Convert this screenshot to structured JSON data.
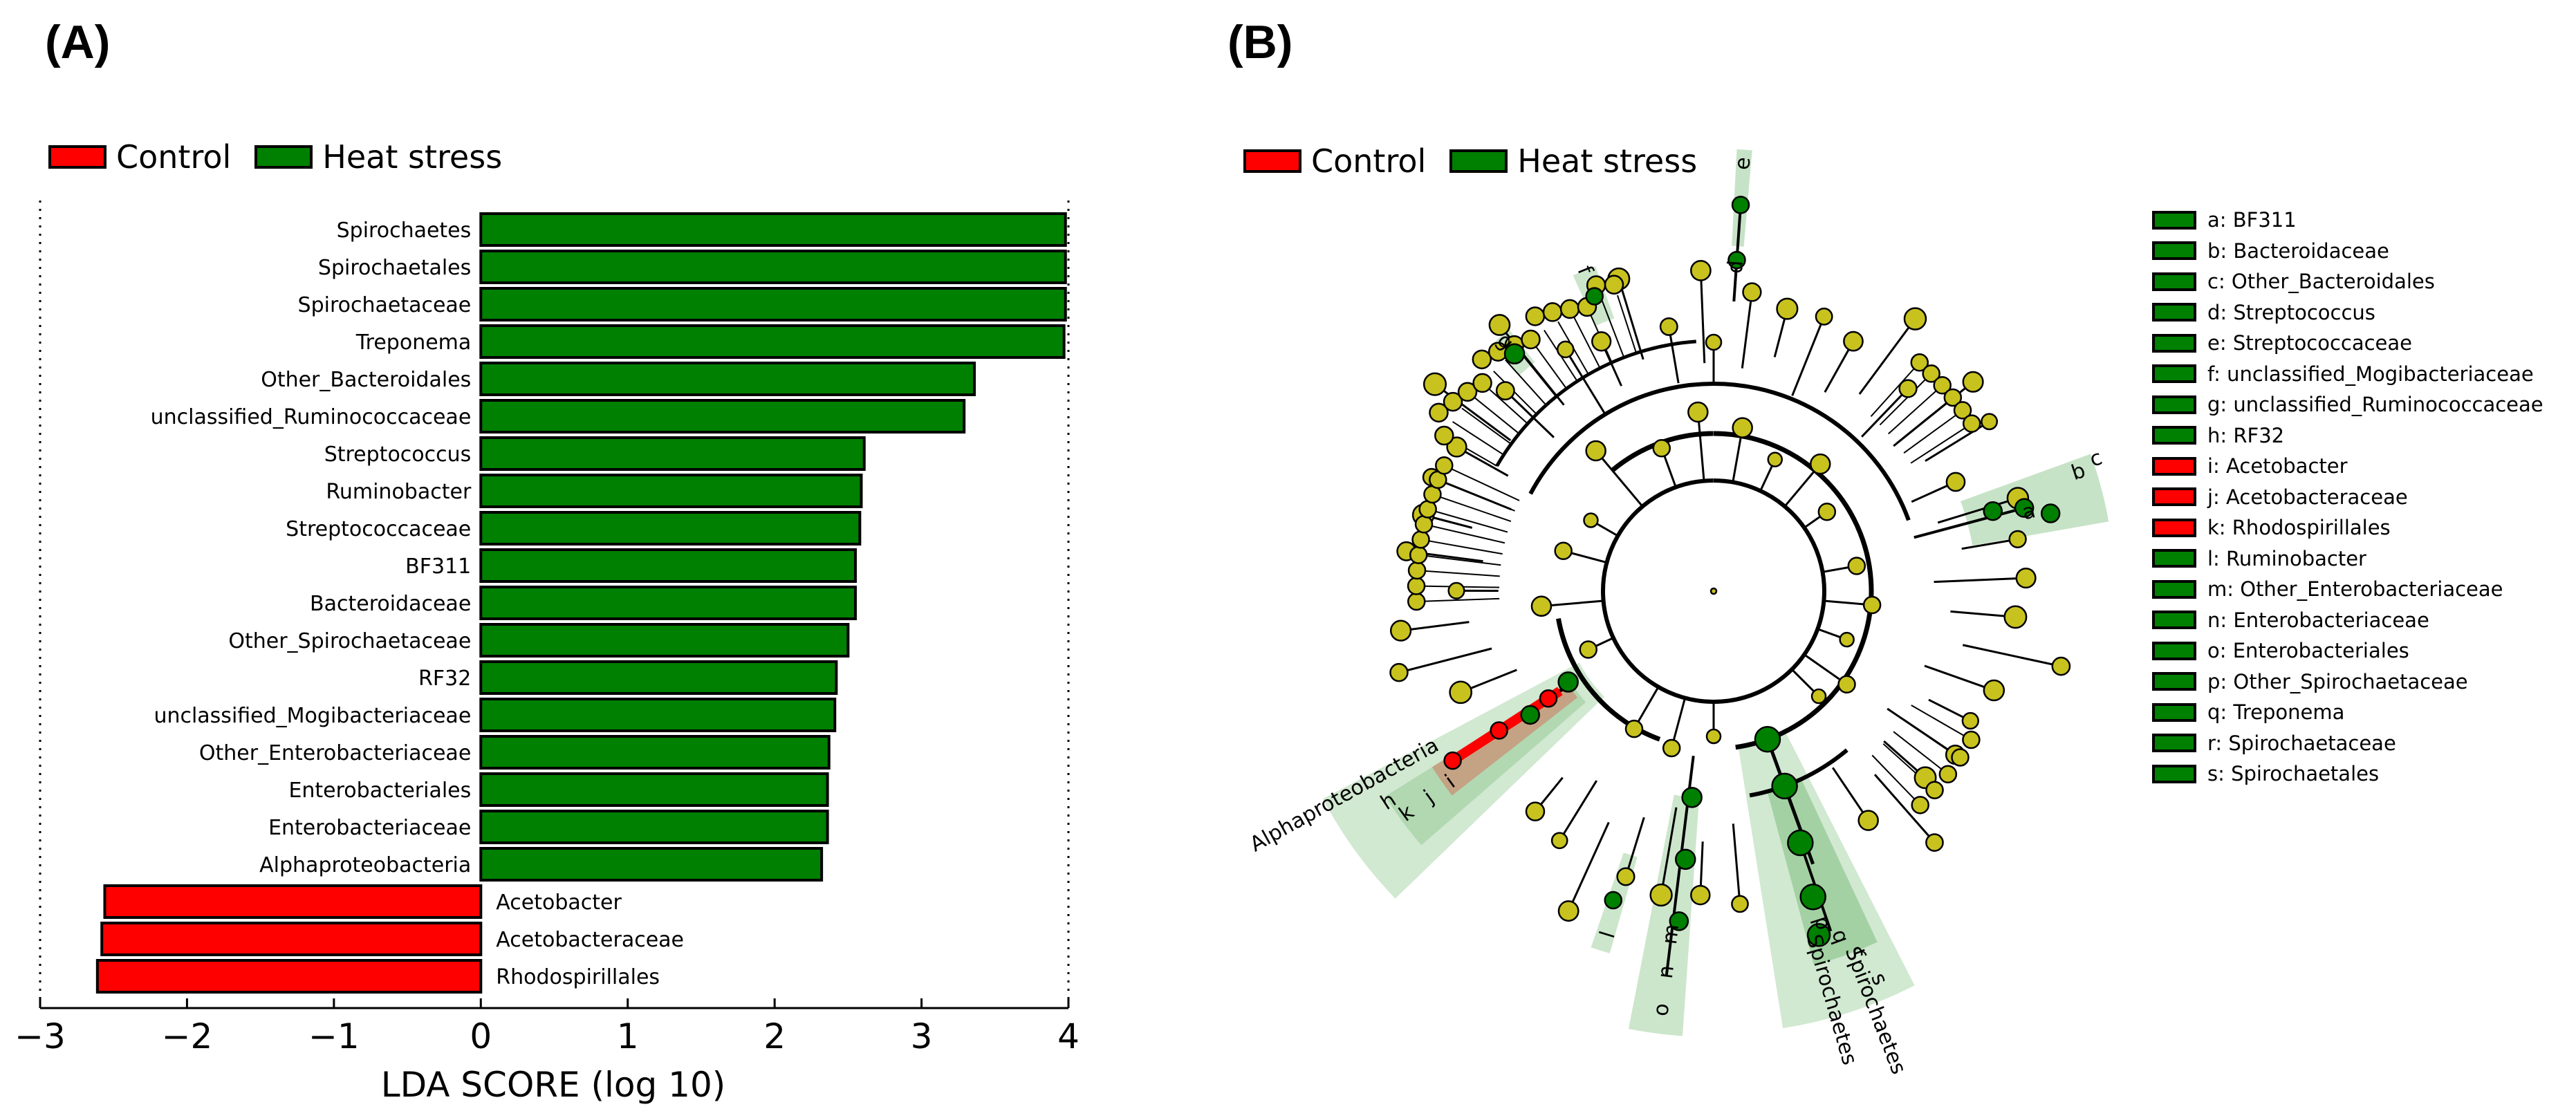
{
  "panel_a": {
    "label": "(A)"
  },
  "panel_b": {
    "label": "(B)"
  },
  "colors": {
    "control": "#ff0000",
    "heat": "#008000",
    "node": "#c8c21e",
    "ring": "#000000"
  },
  "legend": {
    "control": {
      "label": "Control",
      "color": "#ff0000"
    },
    "heat": {
      "label": "Heat stress",
      "color": "#008000"
    }
  },
  "chart_data": {
    "type": "bar",
    "orientation": "horizontal",
    "title": "",
    "xlabel": "LDA SCORE (log 10)",
    "ylabel": "",
    "xlim": [
      -3,
      4
    ],
    "xticks": [
      -3,
      -2,
      -1,
      0,
      1,
      2,
      3,
      4
    ],
    "xtick_labels": [
      "−3",
      "−2",
      "−1",
      "0",
      "1",
      "2",
      "3",
      "4"
    ],
    "series": [
      {
        "name": "Heat stress",
        "color": "#008000"
      },
      {
        "name": "Control",
        "color": "#ff0000"
      }
    ],
    "bars": [
      {
        "label": "Spirochaetes",
        "value": 3.98,
        "group": "Heat stress"
      },
      {
        "label": "Spirochaetales",
        "value": 3.98,
        "group": "Heat stress"
      },
      {
        "label": "Spirochaetaceae",
        "value": 3.98,
        "group": "Heat stress"
      },
      {
        "label": "Treponema",
        "value": 3.97,
        "group": "Heat stress"
      },
      {
        "label": "Other_Bacteroidales",
        "value": 3.36,
        "group": "Heat stress"
      },
      {
        "label": "unclassified_Ruminococcaceae",
        "value": 3.29,
        "group": "Heat stress"
      },
      {
        "label": "Streptococcus",
        "value": 2.61,
        "group": "Heat stress"
      },
      {
        "label": "Ruminobacter",
        "value": 2.59,
        "group": "Heat stress"
      },
      {
        "label": "Streptococcaceae",
        "value": 2.58,
        "group": "Heat stress"
      },
      {
        "label": "BF311",
        "value": 2.55,
        "group": "Heat stress"
      },
      {
        "label": "Bacteroidaceae",
        "value": 2.55,
        "group": "Heat stress"
      },
      {
        "label": "Other_Spirochaetaceae",
        "value": 2.5,
        "group": "Heat stress"
      },
      {
        "label": "RF32",
        "value": 2.42,
        "group": "Heat stress"
      },
      {
        "label": "unclassified_Mogibacteriaceae",
        "value": 2.41,
        "group": "Heat stress"
      },
      {
        "label": "Other_Enterobacteriaceae",
        "value": 2.37,
        "group": "Heat stress"
      },
      {
        "label": "Enterobacteriales",
        "value": 2.36,
        "group": "Heat stress"
      },
      {
        "label": "Enterobacteriaceae",
        "value": 2.36,
        "group": "Heat stress"
      },
      {
        "label": "Alphaproteobacteria",
        "value": 2.32,
        "group": "Heat stress"
      },
      {
        "label": "Acetobacter",
        "value": -2.56,
        "group": "Control"
      },
      {
        "label": "Acetobacteraceae",
        "value": -2.58,
        "group": "Control"
      },
      {
        "label": "Rhodospirillales",
        "value": -2.61,
        "group": "Control"
      }
    ]
  },
  "cladogram": {
    "highlight_labels": [
      "a",
      "b",
      "c",
      "d",
      "e",
      "f",
      "g",
      "h",
      "i",
      "j",
      "k",
      "l",
      "m",
      "n",
      "o",
      "p",
      "q",
      "r",
      "s"
    ],
    "clade_labels": {
      "alpha": "Alphaproteobacteria",
      "spiro1": "Spirochaetes",
      "spiro2": "Spirochaetes"
    },
    "legend": [
      {
        "key": "a: BF311",
        "color": "#008000"
      },
      {
        "key": "b: Bacteroidaceae",
        "color": "#008000"
      },
      {
        "key": "c: Other_Bacteroidales",
        "color": "#008000"
      },
      {
        "key": "d: Streptococcus",
        "color": "#008000"
      },
      {
        "key": "e: Streptococcaceae",
        "color": "#008000"
      },
      {
        "key": "f: unclassified_Mogibacteriaceae",
        "color": "#008000"
      },
      {
        "key": "g: unclassified_Ruminococcaceae",
        "color": "#008000"
      },
      {
        "key": "h: RF32",
        "color": "#008000"
      },
      {
        "key": "i: Acetobacter",
        "color": "#ff0000"
      },
      {
        "key": "j: Acetobacteraceae",
        "color": "#ff0000"
      },
      {
        "key": "k: Rhodospirillales",
        "color": "#ff0000"
      },
      {
        "key": "l: Ruminobacter",
        "color": "#008000"
      },
      {
        "key": "m: Other_Enterobacteriaceae",
        "color": "#008000"
      },
      {
        "key": "n: Enterobacteriaceae",
        "color": "#008000"
      },
      {
        "key": "o: Enterobacteriales",
        "color": "#008000"
      },
      {
        "key": "p: Other_Spirochaetaceae",
        "color": "#008000"
      },
      {
        "key": "q: Treponema",
        "color": "#008000"
      },
      {
        "key": "r: Spirochaetaceae",
        "color": "#008000"
      },
      {
        "key": "s: Spirochaetales",
        "color": "#008000"
      }
    ]
  }
}
